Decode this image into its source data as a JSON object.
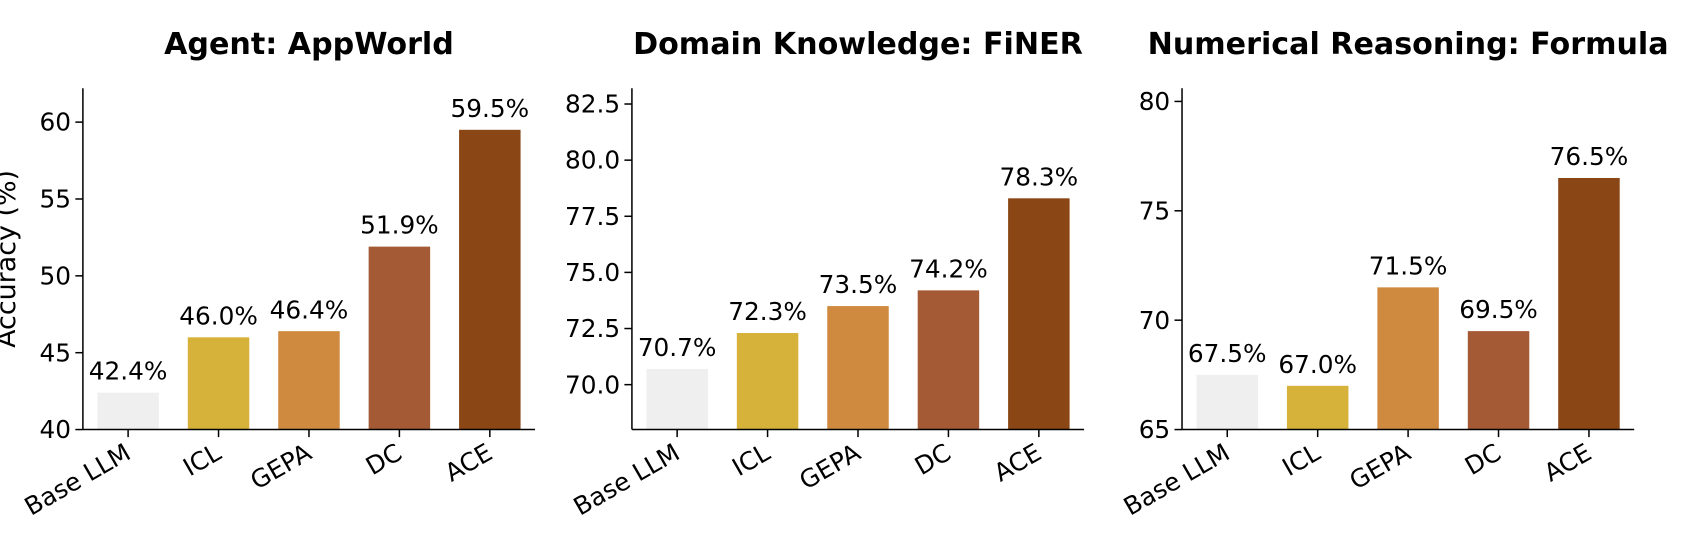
{
  "chart_data": [
    {
      "type": "bar",
      "title": "Agent: AppWorld",
      "y_label": "Accuracy (%)",
      "categories": [
        "Base LLM",
        "ICL",
        "GEPA",
        "DC",
        "ACE"
      ],
      "values": [
        42.4,
        46.0,
        46.4,
        51.9,
        59.5
      ],
      "value_labels": [
        "42.4%",
        "46.0%",
        "46.4%",
        "51.9%",
        "59.5%"
      ],
      "colors": [
        "#efefef",
        "#d6b23a",
        "#cf8a3f",
        "#a45a35",
        "#8a4614"
      ],
      "ylim": [
        40,
        62.2
      ],
      "yticks": [
        40,
        45,
        50,
        55,
        60
      ]
    },
    {
      "type": "bar",
      "title": "Domain Knowledge: FiNER",
      "categories": [
        "Base LLM",
        "ICL",
        "GEPA",
        "DC",
        "ACE"
      ],
      "values": [
        70.7,
        72.3,
        73.5,
        74.2,
        78.3
      ],
      "value_labels": [
        "70.7%",
        "72.3%",
        "73.5%",
        "74.2%",
        "78.3%"
      ],
      "colors": [
        "#efefef",
        "#d6b23a",
        "#cf8a3f",
        "#a45a35",
        "#8a4614"
      ],
      "ylim": [
        68.0,
        83.2
      ],
      "yticks": [
        {
          "value": 70,
          "label": "70.0"
        },
        72.5,
        {
          "value": 75,
          "label": "75.0"
        },
        77.5,
        {
          "value": 80,
          "label": "80.0"
        },
        82.5
      ]
    },
    {
      "type": "bar",
      "title": "Numerical Reasoning: Formula",
      "categories": [
        "Base LLM",
        "ICL",
        "GEPA",
        "DC",
        "ACE"
      ],
      "values": [
        67.5,
        67.0,
        71.5,
        69.5,
        76.5
      ],
      "value_labels": [
        "67.5%",
        "67.0%",
        "71.5%",
        "69.5%",
        "76.5%"
      ],
      "colors": [
        "#efefef",
        "#d6b23a",
        "#cf8a3f",
        "#a45a35",
        "#8a4614"
      ],
      "ylim": [
        65,
        80.6
      ],
      "yticks": [
        65,
        70,
        75,
        80
      ]
    }
  ]
}
